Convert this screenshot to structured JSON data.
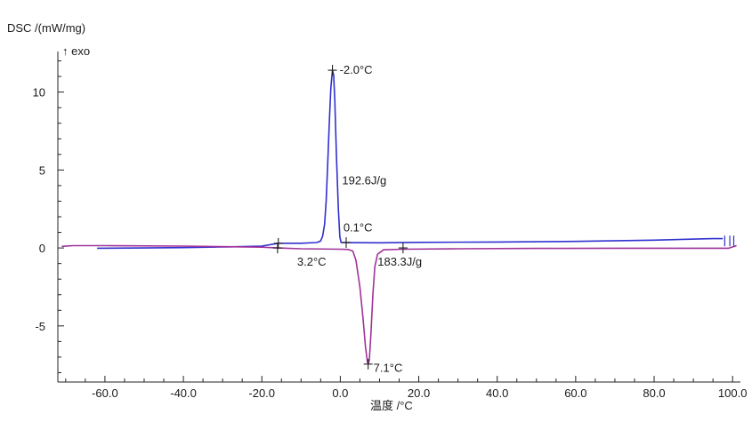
{
  "chart_data": {
    "type": "line",
    "ylabel": "DSC /(mW/mg)",
    "exo_label": "↑ exo",
    "xlabel": "温度 /°C",
    "xlim": [
      -72,
      102
    ],
    "ylim": [
      -8.6,
      12.6
    ],
    "xticks": [
      -60,
      -40,
      -20,
      0,
      20,
      40,
      60,
      80,
      100
    ],
    "xtick_labels": [
      "-60.0",
      "-40.0",
      "-20.0",
      "0.0",
      "20.0",
      "40.0",
      "60.0",
      "80.0",
      "100.0"
    ],
    "yticks": [
      -5,
      0,
      5,
      10
    ],
    "ytick_labels": [
      "-5",
      "0",
      "5",
      "10"
    ],
    "series": [
      {
        "color": "#3030d0",
        "points": [
          [
            -62,
            -0.02
          ],
          [
            -50,
            0.0
          ],
          [
            -40,
            0.02
          ],
          [
            -30,
            0.06
          ],
          [
            -20,
            0.12
          ],
          [
            -15.8,
            0.3
          ],
          [
            -10,
            0.3
          ],
          [
            -6,
            0.35
          ],
          [
            -5,
            0.45
          ],
          [
            -4.5,
            0.75
          ],
          [
            -4,
            1.5
          ],
          [
            -3.6,
            3.0
          ],
          [
            -3.2,
            5.5
          ],
          [
            -2.8,
            8.0
          ],
          [
            -2.4,
            10.3
          ],
          [
            -2.0,
            11.4
          ],
          [
            -1.7,
            11.1
          ],
          [
            -1.4,
            9.5
          ],
          [
            -1.0,
            6.0
          ],
          [
            -0.5,
            2.5
          ],
          [
            -0.1,
            0.7
          ],
          [
            0.2,
            0.35
          ],
          [
            1.5,
            0.34
          ],
          [
            10,
            0.33
          ],
          [
            20,
            0.36
          ],
          [
            40,
            0.38
          ],
          [
            60,
            0.42
          ],
          [
            80,
            0.5
          ],
          [
            95,
            0.6
          ],
          [
            97.5,
            0.6
          ]
        ]
      },
      {
        "color": "#a0329a",
        "points": [
          [
            -71,
            0.1
          ],
          [
            -68,
            0.15
          ],
          [
            -60,
            0.15
          ],
          [
            -40,
            0.12
          ],
          [
            -20,
            0.05
          ],
          [
            -16,
            0.0
          ],
          [
            -10,
            -0.05
          ],
          [
            0,
            -0.08
          ],
          [
            2,
            -0.1
          ],
          [
            3.2,
            -0.2
          ],
          [
            4,
            -0.8
          ],
          [
            5,
            -2.5
          ],
          [
            5.8,
            -4.5
          ],
          [
            6.4,
            -6.3
          ],
          [
            6.9,
            -7.3
          ],
          [
            7.1,
            -7.45
          ],
          [
            7.4,
            -7.2
          ],
          [
            7.8,
            -5.5
          ],
          [
            8.3,
            -3.0
          ],
          [
            8.8,
            -1.2
          ],
          [
            9.5,
            -0.4
          ],
          [
            11,
            -0.12
          ],
          [
            16,
            -0.08
          ],
          [
            30,
            -0.05
          ],
          [
            50,
            -0.03
          ],
          [
            70,
            -0.02
          ],
          [
            90,
            -0.02
          ],
          [
            99,
            -0.02
          ],
          [
            101,
            0.15
          ]
        ]
      }
    ],
    "annotations": [
      {
        "text": "-2.0°C",
        "x": -2.0,
        "y": 11.4
      },
      {
        "text": "192.6J/g",
        "x": 0.0,
        "y": 4.3
      },
      {
        "text": "0.1°C",
        "x": 0.1,
        "y": 1.3
      },
      {
        "text": "3.2°C",
        "x": -11.0,
        "y": -0.9
      },
      {
        "text": "183.3J/g",
        "x": 9.5,
        "y": -0.9
      },
      {
        "text": "7.1°C",
        "x": 7.1,
        "y": -7.5
      }
    ],
    "markers": [
      {
        "x": -2.0,
        "y": 11.4
      },
      {
        "x": -15.8,
        "y": 0.3
      },
      {
        "x": 1.5,
        "y": 0.35
      },
      {
        "x": -16.0,
        "y": 0.0
      },
      {
        "x": 16.0,
        "y": 0.0
      },
      {
        "x": 7.1,
        "y": -7.45
      }
    ],
    "grid": false
  }
}
